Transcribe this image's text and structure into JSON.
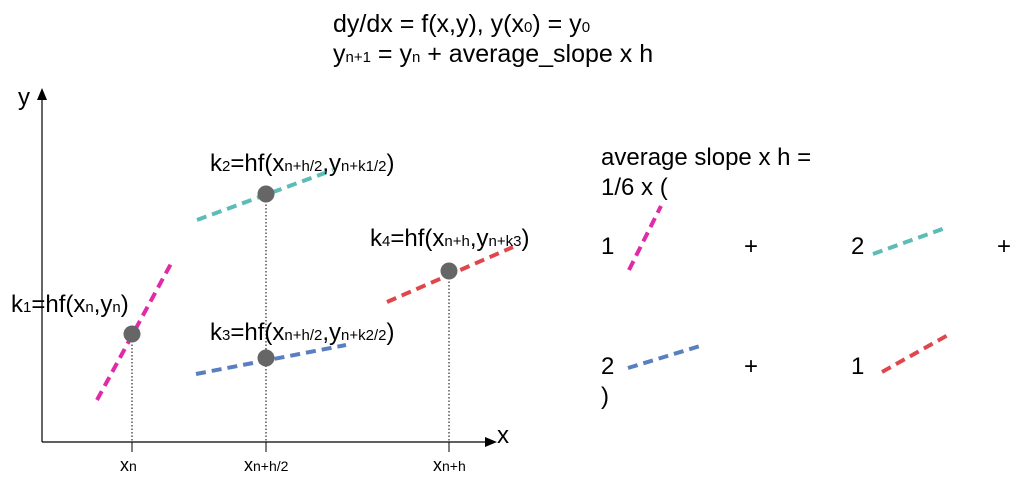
{
  "equations": {
    "ode": "dy/dx = f(x,y), y(x0) = y0",
    "update": "yn+1 = yn + average_slope x h"
  },
  "axes": {
    "y_label": "y",
    "x_label": "x"
  },
  "x_ticks": [
    "xn",
    "xn+h/2",
    "xn+h"
  ],
  "slopes": {
    "k1": "k1=hf(xn,yn)",
    "k2": "k2=hf(xn+h/2,yn+k1/2)",
    "k3": "k3=hf(xn+h/2,yn+k2/2)",
    "k4": "k4=hf(xn+h,yn+k3)"
  },
  "average": {
    "line1": "average slope x h =",
    "line2": "1/6 x (",
    "w1": "1",
    "w2": "2",
    "w3": "2",
    "w4": "1",
    "plus": "+",
    "close": ")"
  },
  "colors": {
    "k1": "#e02aa8",
    "k2": "#5cbcb8",
    "k3": "#5a7fc0",
    "k4": "#e0474c",
    "point": "#666666"
  }
}
